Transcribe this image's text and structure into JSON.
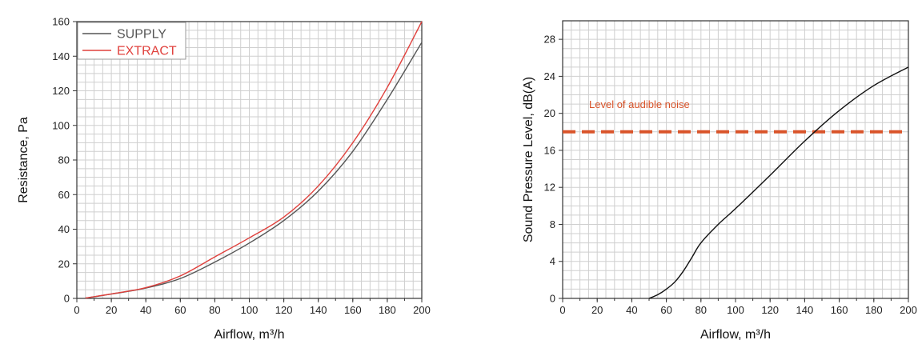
{
  "chart_data": [
    {
      "type": "line",
      "title": "",
      "xlabel": "Airflow, m³/h",
      "ylabel": "Resistance, Pa",
      "xlim": [
        0,
        200
      ],
      "ylim": [
        0,
        160
      ],
      "xticks": [
        0,
        20,
        40,
        60,
        80,
        100,
        120,
        140,
        160,
        180,
        200
      ],
      "yticks": [
        0,
        20,
        40,
        60,
        80,
        100,
        120,
        140,
        160
      ],
      "grid": true,
      "legend_position": "top-left",
      "series": [
        {
          "name": "SUPPLY",
          "color": "#555555",
          "x": [
            5,
            20,
            40,
            60,
            80,
            100,
            120,
            140,
            160,
            180,
            200
          ],
          "y": [
            0.2,
            2.5,
            6,
            11.5,
            21,
            32,
            45,
            62,
            85,
            115,
            148
          ]
        },
        {
          "name": "EXTRACT",
          "color": "#e0403c",
          "x": [
            5,
            20,
            40,
            60,
            80,
            100,
            120,
            140,
            160,
            180,
            200
          ],
          "y": [
            0.2,
            2.6,
            6.2,
            13,
            24,
            35,
            47,
            65,
            90,
            122,
            160
          ]
        }
      ]
    },
    {
      "type": "line",
      "title": "",
      "xlabel": "Airflow, m³/h",
      "ylabel": "Sound Pressure Level, dB(A)",
      "xlim": [
        0,
        200
      ],
      "ylim": [
        0,
        30
      ],
      "xticks": [
        0,
        20,
        40,
        60,
        80,
        100,
        120,
        140,
        160,
        180,
        200
      ],
      "yticks": [
        0,
        4,
        8,
        12,
        16,
        20,
        24,
        28
      ],
      "grid": true,
      "series": [
        {
          "color": "#111111",
          "x": [
            50,
            55,
            60,
            65,
            70,
            75,
            80,
            90,
            100,
            120,
            140,
            160,
            180,
            200
          ],
          "y": [
            0,
            0.4,
            1.0,
            1.8,
            3.0,
            4.5,
            6.0,
            8.0,
            9.7,
            13.3,
            17.0,
            20.3,
            23.0,
            25.0
          ]
        }
      ],
      "reference_line": {
        "label": "Level of audible noise",
        "y": 18,
        "color": "#d9542a",
        "style": "dashed"
      }
    }
  ]
}
